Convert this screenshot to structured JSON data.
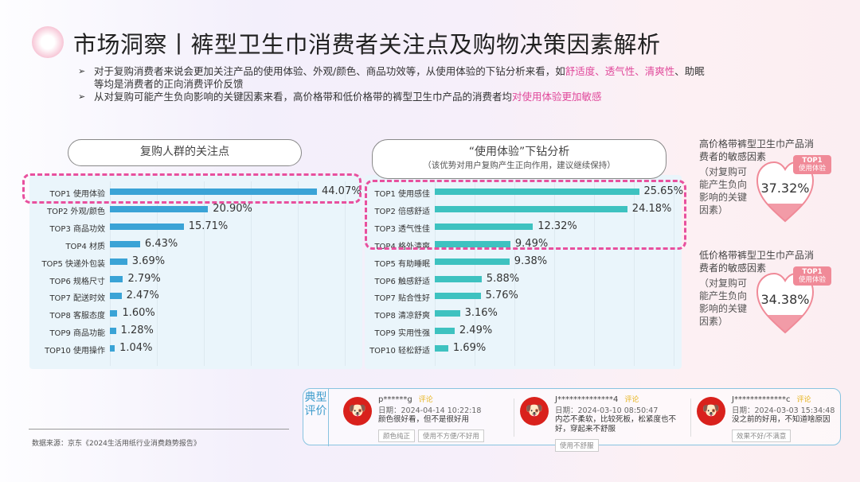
{
  "header": {
    "title": "市场洞察丨裤型卫生巾消费者关注点及购物决策因素解析",
    "logo_icon": "cherry-blossom-icon"
  },
  "bullets": [
    {
      "pre": "对于复购消费者来说会更加关注产品的使用体验、外观/颜色、商品功效等，从使用体验的下钻分析来看，如",
      "hl1": "舒适度、透气性、清爽性",
      "post": "、助眠等均是消费者的正向消费评价反馈"
    },
    {
      "pre": "从对复购可能产生负向影响的关键因素来看，高价格带和低价格带的裤型卫生巾产品的消费者均",
      "hl1": "对使用体验更加敏感",
      "post": ""
    }
  ],
  "colors": {
    "accent": "#e8509e",
    "bar_left": "#3aa3d6",
    "bar_right": "#3ec2c0",
    "heart": "#f08a98"
  },
  "chart_data": [
    {
      "type": "bar",
      "orientation": "horizontal",
      "title": "复购人群的关注点",
      "categories": [
        "TOP1 使用体验",
        "TOP2 外观/颜色",
        "TOP3 商品功效",
        "TOP4 材质",
        "TOP5 快递外包装",
        "TOP6 规格尺寸",
        "TOP7 配送时效",
        "TOP8 客服态度",
        "TOP9 商品功能",
        "TOP10 使用操作"
      ],
      "values": [
        44.07,
        20.9,
        15.71,
        6.43,
        3.69,
        2.79,
        2.47,
        1.6,
        1.28,
        1.04
      ],
      "labels": [
        "44.07%",
        "20.90%",
        "15.71%",
        "6.43%",
        "3.69%",
        "2.79%",
        "2.47%",
        "1.60%",
        "1.28%",
        "1.04%"
      ],
      "highlighted": [
        "TOP1 使用体验"
      ],
      "unit": "%"
    },
    {
      "type": "bar",
      "orientation": "horizontal",
      "title": "“使用体验”下钻分析",
      "subtitle": "（该优势对用户复购产生正向作用，建议继续保持）",
      "categories": [
        "TOP1 使用感佳",
        "TOP2 倍感舒适",
        "TOP3 透气性佳",
        "TOP4 格外清爽",
        "TOP5 有助睡眠",
        "TOP6 触感舒适",
        "TOP7 贴合性好",
        "TOP8 清凉舒爽",
        "TOP9 实用性强",
        "TOP10 轻松舒适"
      ],
      "values": [
        25.65,
        24.18,
        12.32,
        9.49,
        9.38,
        5.88,
        5.76,
        3.16,
        2.49,
        1.69
      ],
      "labels": [
        "25.65%",
        "24.18%",
        "12.32%",
        "9.49%",
        "9.38%",
        "5.88%",
        "5.76%",
        "3.16%",
        "2.49%",
        "1.69%"
      ],
      "highlighted": [
        "TOP1 使用感佳",
        "TOP2 倍感舒适",
        "TOP3 透气性佳",
        "TOP4 格外清爽"
      ],
      "unit": "%"
    }
  ],
  "side": [
    {
      "heading": "高价格带裤型卫生巾产品消费者的敏感因素",
      "note": "（对复购可能产生负向影响的关键因素）",
      "badge_top": "TOP1",
      "badge_sub": "使用体验",
      "value": "37.32%",
      "fill": 0.3732
    },
    {
      "heading": "低价格带裤型卫生巾产品消费者的敏感因素",
      "note": "（对复购可能产生负向影响的关键因素）",
      "badge_top": "TOP1",
      "badge_sub": "使用体验",
      "value": "34.38%",
      "fill": 0.3438
    }
  ],
  "reviews": {
    "tag": "典型评价",
    "items": [
      {
        "user": "p******g",
        "label": "评论",
        "date": "日期：2024-04-14 10:22:18",
        "text": "颜色很好看，但不是很好用",
        "chips": [
          "颜色纯正",
          "使用不方便/不好用"
        ]
      },
      {
        "user": "J**************4",
        "label": "评论",
        "date": "日期：2024-03-10 08:50:47",
        "text": "内芯不柔软，比较死板，松紧度也不好，穿起来不舒服",
        "chips": [
          "使用不舒服"
        ]
      },
      {
        "user": "J*************c",
        "label": "评论",
        "date": "日期：2024-03-03 15:34:48",
        "text": "没之前的好用，不知道啥原因",
        "chips": [
          "效果不好/不满意"
        ]
      }
    ]
  },
  "source": "数据来源：京东《2024生活用纸行业消费趋势报告》"
}
